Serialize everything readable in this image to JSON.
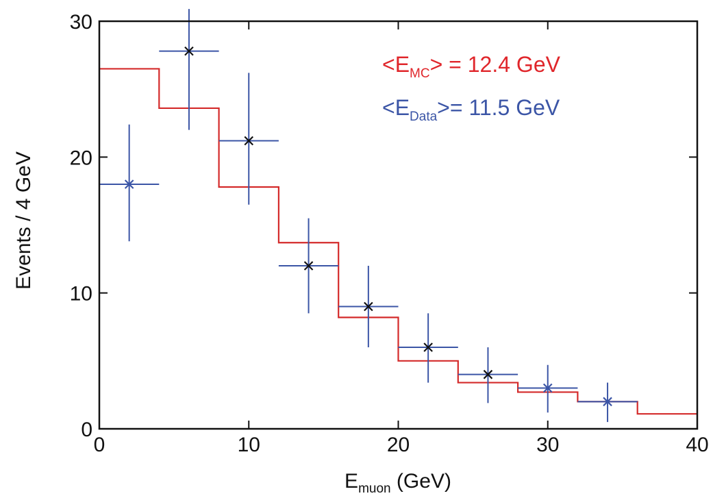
{
  "chart_data": {
    "type": "histogram-with-errorbars",
    "xlabel": {
      "main": "E",
      "sub": "muon",
      "rest": " (GeV)"
    },
    "ylabel": "Events / 4 GeV",
    "xlim": [
      0,
      40
    ],
    "ylim": [
      0,
      30
    ],
    "xticks": [
      0,
      10,
      20,
      30,
      40
    ],
    "yticks": [
      0,
      10,
      20,
      30
    ],
    "grid": false,
    "annotations": [
      {
        "pre": "<E",
        "sub": "MC",
        "post": "> = 12.4 GeV",
        "color": "#e0262b"
      },
      {
        "pre": "<E",
        "sub": "Data",
        "post": ">= 11.5 GeV",
        "color": "#3b55a6"
      }
    ],
    "mc_histogram": {
      "color": "#d42a2a",
      "bin_edges": [
        0,
        4,
        8,
        12,
        16,
        20,
        24,
        28,
        32,
        36,
        40
      ],
      "values": [
        26.5,
        23.6,
        17.8,
        13.7,
        8.2,
        5.0,
        3.4,
        2.7,
        2.0,
        1.1
      ]
    },
    "data_points": {
      "errorbar_color": "#3b55a6",
      "x": [
        2,
        6,
        10,
        14,
        18,
        22,
        26,
        30,
        34
      ],
      "y": [
        18,
        27.8,
        21.2,
        12,
        9,
        6,
        4,
        3,
        2
      ],
      "xerr": 2,
      "yerr_low": [
        4.2,
        5.8,
        4.7,
        3.5,
        3.0,
        2.6,
        2.1,
        1.8,
        1.5
      ],
      "yerr_high": [
        4.4,
        3.1,
        5.0,
        3.5,
        3.0,
        2.5,
        2.0,
        1.7,
        1.4
      ],
      "marker_colors": [
        "#3b55a6",
        "#111111",
        "#111111",
        "#111111",
        "#111111",
        "#111111",
        "#111111",
        "#3b55a6",
        "#3b55a6"
      ]
    }
  }
}
